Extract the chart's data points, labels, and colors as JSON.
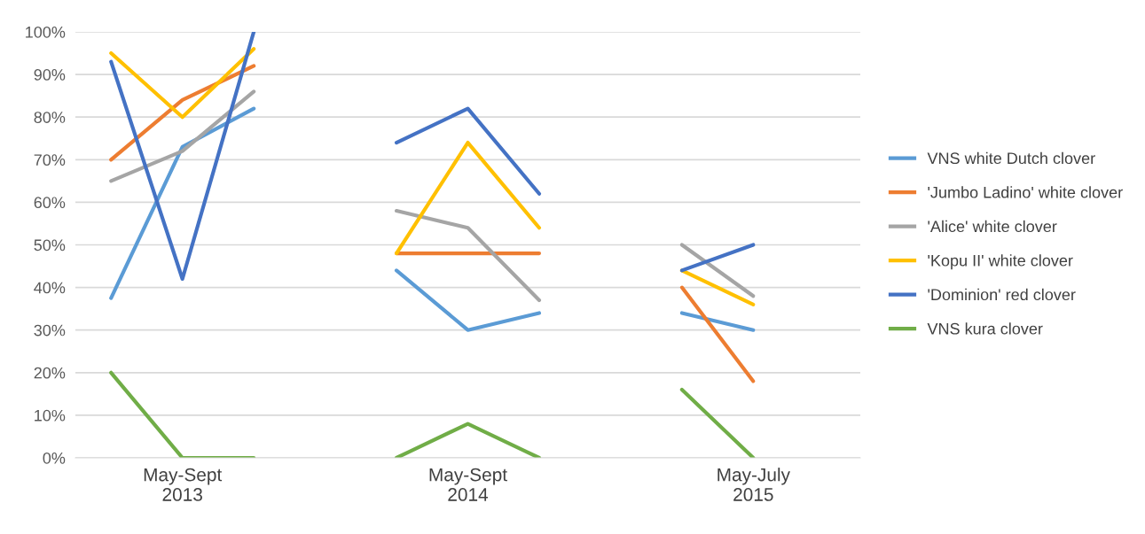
{
  "chart_data": {
    "type": "line",
    "categories": [
      null,
      "May-Sept\n2013",
      null,
      null,
      null,
      "May-Sept\n2014",
      null,
      null,
      null,
      "May-July\n2015",
      null
    ],
    "ylim": [
      0,
      100
    ],
    "yticks": [
      {
        "value": 0,
        "label": "0%"
      },
      {
        "value": 10,
        "label": "10%"
      },
      {
        "value": 20,
        "label": "20%"
      },
      {
        "value": 30,
        "label": "30%"
      },
      {
        "value": 40,
        "label": "40%"
      },
      {
        "value": 50,
        "label": "50%"
      },
      {
        "value": 60,
        "label": "60%"
      },
      {
        "value": 70,
        "label": "70%"
      },
      {
        "value": 80,
        "label": "80%"
      },
      {
        "value": 90,
        "label": "90%"
      },
      {
        "value": 100,
        "label": "100%"
      }
    ],
    "grid": "y",
    "legend": "right",
    "line_style": "solid",
    "series": [
      {
        "name": "VNS white Dutch clover",
        "color": "#5b9bd5",
        "values": [
          37.5,
          73,
          82,
          null,
          44,
          30,
          34,
          null,
          34,
          30,
          null
        ]
      },
      {
        "name": "'Jumbo Ladino' white clover",
        "color": "#ed7d31",
        "values": [
          70,
          84,
          92,
          null,
          48,
          48,
          48,
          null,
          40,
          18,
          null
        ]
      },
      {
        "name": "'Alice' white clover",
        "color": "#a5a5a5",
        "values": [
          65,
          72,
          86,
          null,
          58,
          54,
          37,
          null,
          50,
          38,
          null
        ]
      },
      {
        "name": "'Kopu II' white clover",
        "color": "#ffc000",
        "values": [
          95,
          80,
          96,
          null,
          48,
          74,
          54,
          null,
          44,
          36,
          null
        ]
      },
      {
        "name": "'Dominion' red clover",
        "color": "#4472c4",
        "values": [
          93,
          42,
          100,
          null,
          74,
          82,
          62,
          null,
          44,
          50,
          null
        ]
      },
      {
        "name": "VNS kura clover",
        "color": "#70ad47",
        "values": [
          20,
          0,
          0,
          null,
          0,
          8,
          0,
          null,
          16,
          0,
          null
        ]
      }
    ]
  }
}
